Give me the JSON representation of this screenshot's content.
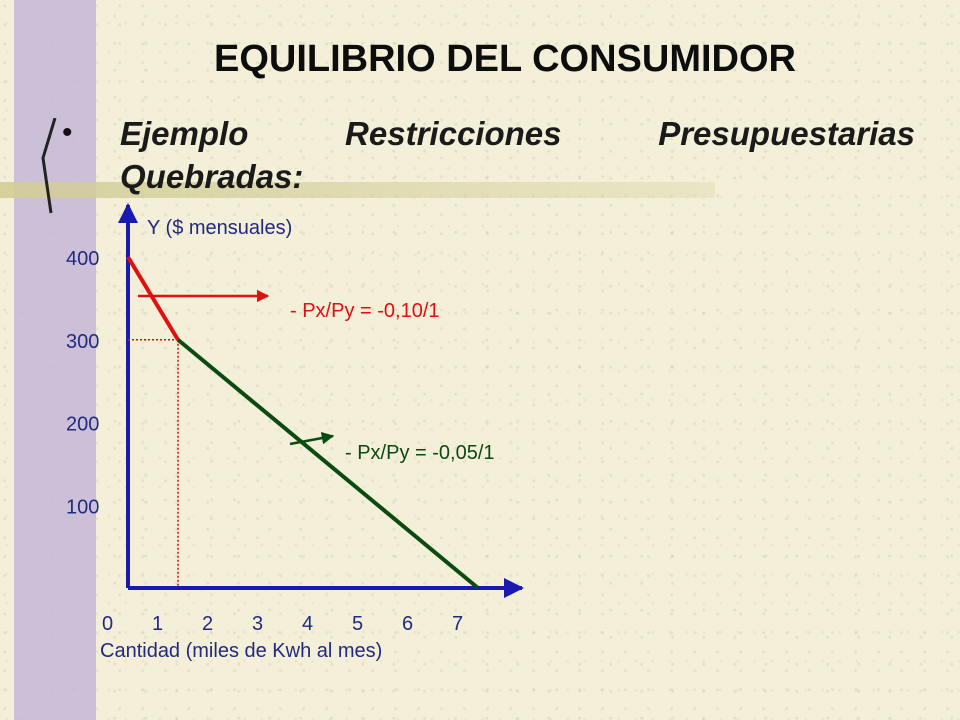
{
  "slide": {
    "title": "EQUILIBRIO DEL CONSUMIDOR",
    "bullet": "•",
    "subtitle": "Ejemplo Restricciones Presupuestarias Quebradas:"
  },
  "chart_data": {
    "type": "line",
    "ylabel": "Y ($ mensuales)",
    "xlabel": "Cantidad (miles de Kwh al mes)",
    "x_ticks": [
      "0",
      "1",
      "2",
      "3",
      "4",
      "5",
      "6",
      "7"
    ],
    "y_ticks": [
      "100",
      "200",
      "300",
      "400"
    ],
    "xlim": [
      0,
      7
    ],
    "ylim": [
      0,
      400
    ],
    "series": [
      {
        "values": [
          [
            0,
            400
          ],
          [
            1,
            300
          ]
        ],
        "color": "#e01010"
      },
      {
        "values": [
          [
            1,
            300
          ],
          [
            7,
            0
          ]
        ],
        "color": "#0b4a10"
      }
    ],
    "guide_color": "#cc1010",
    "axis_color": "#1a1ab0",
    "annotations": [
      {
        "text": "- Px/Py = -0,10/1",
        "color": "#e01010"
      },
      {
        "text": "- Px/Py = -0,05/1",
        "color": "#0b4a10"
      }
    ]
  }
}
